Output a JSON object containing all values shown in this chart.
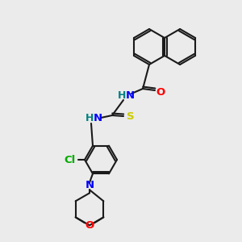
{
  "background_color": "#ebebeb",
  "bond_lw": 1.5,
  "bond_color": "#1a1a1a",
  "atom_colors": {
    "N": "#0000ff",
    "O": "#ff0000",
    "S": "#cccc00",
    "Cl": "#00aa00",
    "H": "#008080",
    "C": "#1a1a1a"
  },
  "font_size": 9.5
}
